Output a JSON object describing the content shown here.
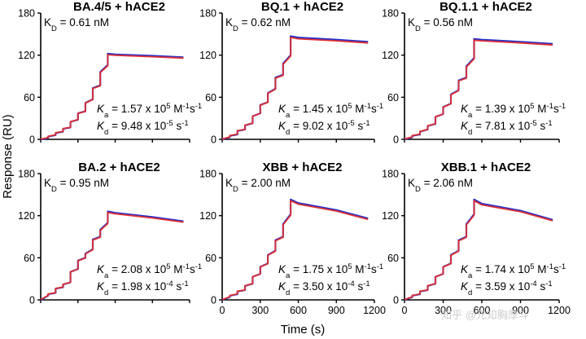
{
  "figure": {
    "ylabel": "Response (RU)",
    "xlabel": "Time (s)",
    "watermark": "知乎 @元知胸厚斗"
  },
  "series_colors": {
    "fit": "#e03030",
    "data": "#2230d0"
  },
  "chart_data": [
    {
      "type": "line",
      "title": "BA.4/5 + hACE2",
      "kd_label": "K",
      "kd_sub": "D",
      "kd_value": "= 0.61 nM",
      "ka_sym": "K",
      "ka_sub": "a",
      "ka_text": "= 1.57 x 10",
      "ka_exp": "5",
      "ka_unit": " M",
      "ka_exp2": "-1",
      "ka_tail": "s",
      "ka_exp3": "-1",
      "kdiss_sym": "K",
      "kdiss_sub": "d",
      "kdiss_text": "= 9.48 x 10",
      "kdiss_exp": "-5",
      "kdiss_unit": " s",
      "kdiss_exp2": "-1",
      "xlim": [
        0,
        1200
      ],
      "ylim": [
        0,
        180
      ],
      "xticks": [
        0,
        300,
        600,
        900,
        1200
      ],
      "yticks": [
        0,
        60,
        120,
        180
      ],
      "show_xticks": false,
      "series": [
        {
          "x": [
            0,
            60,
            60,
            120,
            120,
            180,
            180,
            240,
            240,
            300,
            300,
            360,
            360,
            420,
            420,
            480,
            480,
            540,
            540,
            600,
            900,
            1150
          ],
          "y": [
            0,
            2,
            4,
            6,
            9,
            11,
            15,
            17,
            25,
            28,
            37,
            40,
            52,
            57,
            73,
            77,
            96,
            106,
            122,
            121,
            119,
            117
          ]
        }
      ]
    },
    {
      "type": "line",
      "title": "BQ.1 + hACE2",
      "kd_label": "K",
      "kd_sub": "D",
      "kd_value": "= 0.62 nM",
      "ka_sym": "K",
      "ka_sub": "a",
      "ka_text": "= 1.45 x 10",
      "ka_exp": "5",
      "ka_unit": " M",
      "ka_exp2": "-1",
      "ka_tail": "s",
      "ka_exp3": "-1",
      "kdiss_sym": "K",
      "kdiss_sub": "d",
      "kdiss_text": "= 9.02 x 10",
      "kdiss_exp": "-5",
      "kdiss_unit": " s",
      "kdiss_exp2": "-1",
      "xlim": [
        0,
        1200
      ],
      "ylim": [
        0,
        180
      ],
      "xticks": [
        0,
        300,
        600,
        900,
        1200
      ],
      "yticks": [
        0,
        60,
        120,
        180
      ],
      "show_xticks": false,
      "series": [
        {
          "x": [
            0,
            60,
            60,
            120,
            120,
            180,
            180,
            240,
            240,
            300,
            300,
            360,
            360,
            420,
            420,
            480,
            480,
            540,
            540,
            600,
            900,
            1150
          ],
          "y": [
            0,
            3,
            5,
            7,
            12,
            14,
            20,
            23,
            33,
            37,
            49,
            53,
            66,
            72,
            88,
            92,
            108,
            120,
            147,
            145,
            142,
            139
          ]
        }
      ]
    },
    {
      "type": "line",
      "title": "BQ.1.1 + hACE2",
      "kd_label": "K",
      "kd_sub": "D",
      "kd_value": "= 0.56 nM",
      "ka_sym": "K",
      "ka_sub": "a",
      "ka_text": "= 1.39 x 10",
      "ka_exp": "5",
      "ka_unit": " M",
      "ka_exp2": "-1",
      "ka_tail": "s",
      "ka_exp3": "-1",
      "kdiss_sym": "K",
      "kdiss_sub": "d",
      "kdiss_text": "= 7.81 x 10",
      "kdiss_exp": "-5",
      "kdiss_unit": " s",
      "kdiss_exp2": "-1",
      "xlim": [
        0,
        1200
      ],
      "ylim": [
        0,
        180
      ],
      "xticks": [
        0,
        300,
        600,
        900,
        1200
      ],
      "yticks": [
        0,
        60,
        120,
        180
      ],
      "show_xticks": false,
      "series": [
        {
          "x": [
            0,
            60,
            60,
            120,
            120,
            180,
            180,
            240,
            240,
            300,
            300,
            360,
            360,
            420,
            420,
            480,
            480,
            540,
            540,
            600,
            900,
            1150
          ],
          "y": [
            0,
            3,
            5,
            7,
            11,
            14,
            19,
            22,
            32,
            36,
            46,
            51,
            64,
            70,
            84,
            88,
            104,
            116,
            143,
            142,
            139,
            136
          ]
        }
      ]
    },
    {
      "type": "line",
      "title": "BA.2 + hACE2",
      "kd_label": "K",
      "kd_sub": "D",
      "kd_value": "= 0.95 nM",
      "ka_sym": "K",
      "ka_sub": "a",
      "ka_text": "= 2.08 x 10",
      "ka_exp": "5",
      "ka_unit": " M",
      "ka_exp2": "-1",
      "ka_tail": "s",
      "ka_exp3": "-1",
      "kdiss_sym": "K",
      "kdiss_sub": "d",
      "kdiss_text": "= 1.98 x 10",
      "kdiss_exp": "-4",
      "kdiss_unit": " s",
      "kdiss_exp2": "-1",
      "xlim": [
        0,
        1200
      ],
      "ylim": [
        0,
        180
      ],
      "xticks": [
        0,
        300,
        600,
        900,
        1200
      ],
      "yticks": [
        0,
        60,
        120,
        180
      ],
      "show_xticks": false,
      "series": [
        {
          "x": [
            0,
            60,
            60,
            120,
            120,
            180,
            180,
            240,
            240,
            300,
            300,
            360,
            360,
            420,
            420,
            480,
            480,
            540,
            540,
            600,
            900,
            1150
          ],
          "y": [
            0,
            6,
            8,
            10,
            16,
            18,
            22,
            25,
            40,
            44,
            56,
            60,
            66,
            72,
            86,
            90,
            100,
            110,
            126,
            124,
            118,
            112
          ]
        }
      ]
    },
    {
      "type": "line",
      "title": "XBB + hACE2",
      "kd_label": "K",
      "kd_sub": "D",
      "kd_value": "= 2.00 nM",
      "ka_sym": "K",
      "ka_sub": "a",
      "ka_text": "= 1.75 x 10",
      "ka_exp": "5",
      "ka_unit": " M",
      "ka_exp2": "-1",
      "ka_tail": "s",
      "ka_exp3": "-1",
      "kdiss_sym": "K",
      "kdiss_sub": "d",
      "kdiss_text": "= 3.50 x 10",
      "kdiss_exp": "-4",
      "kdiss_unit": " s",
      "kdiss_exp2": "-1",
      "xlim": [
        0,
        1200
      ],
      "ylim": [
        0,
        180
      ],
      "xticks": [
        0,
        300,
        600,
        900,
        1200
      ],
      "yticks": [
        0,
        60,
        120,
        180
      ],
      "show_xticks": true,
      "series": [
        {
          "x": [
            0,
            60,
            60,
            120,
            120,
            180,
            180,
            240,
            240,
            300,
            300,
            360,
            360,
            420,
            420,
            480,
            480,
            540,
            540,
            600,
            900,
            1150
          ],
          "y": [
            0,
            4,
            6,
            8,
            12,
            14,
            20,
            23,
            33,
            37,
            47,
            52,
            64,
            70,
            85,
            90,
            108,
            122,
            143,
            138,
            128,
            116
          ]
        }
      ]
    },
    {
      "type": "line",
      "title": "XBB.1 + hACE2",
      "kd_label": "K",
      "kd_sub": "D",
      "kd_value": "= 2.06 nM",
      "ka_sym": "K",
      "ka_sub": "a",
      "ka_text": "= 1.74 x 10",
      "ka_exp": "5",
      "ka_unit": " M",
      "ka_exp2": "-1",
      "ka_tail": "s",
      "ka_exp3": "-1",
      "kdiss_sym": "K",
      "kdiss_sub": "d",
      "kdiss_text": "= 3.59 x 10",
      "kdiss_exp": "-4",
      "kdiss_unit": " s",
      "kdiss_exp2": "-1",
      "xlim": [
        0,
        1200
      ],
      "ylim": [
        0,
        180
      ],
      "xticks": [
        0,
        300,
        600,
        900,
        1200
      ],
      "yticks": [
        0,
        60,
        120,
        180
      ],
      "show_xticks": true,
      "series": [
        {
          "x": [
            0,
            60,
            60,
            120,
            120,
            180,
            180,
            240,
            240,
            300,
            300,
            360,
            360,
            420,
            420,
            480,
            480,
            540,
            540,
            600,
            900,
            1150
          ],
          "y": [
            0,
            4,
            6,
            8,
            12,
            14,
            20,
            23,
            33,
            37,
            47,
            52,
            64,
            70,
            85,
            90,
            108,
            122,
            143,
            137,
            127,
            114
          ]
        }
      ]
    }
  ]
}
